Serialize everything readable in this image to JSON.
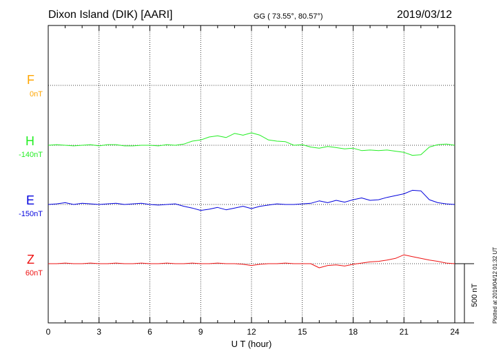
{
  "header": {
    "station": "Dixon Island (DIK)  [AARI]",
    "coords": "GG ( 73.55°,  80.57°)",
    "date": "2019/03/12"
  },
  "footer": {
    "plotted": "Plotted at 2019/04/12 01:32 UT"
  },
  "chart_data": {
    "type": "line",
    "title": "Dixon Island (DIK)  [AARI]",
    "xlabel": "U T (hour)",
    "ylabel": "",
    "xlim": [
      0,
      24
    ],
    "x_ticks": [
      0,
      3,
      6,
      9,
      12,
      15,
      18,
      21,
      24
    ],
    "x_tick_labels": [
      "0",
      "3",
      "6",
      "9",
      "12",
      "15",
      "18",
      "21",
      "24"
    ],
    "grid": true,
    "scale_bar": {
      "label": "500 nT",
      "value_nT": 500
    },
    "series": [
      {
        "name": "F",
        "baseline_label": "0nT",
        "color": "#ffa500",
        "x": [],
        "y": []
      },
      {
        "name": "H",
        "baseline_label": "-140nT",
        "color": "#22ee22",
        "x": [
          0,
          0.5,
          1,
          1.5,
          2,
          2.5,
          3,
          3.5,
          4,
          4.5,
          5,
          5.5,
          6,
          6.5,
          7,
          7.5,
          8,
          8.5,
          9,
          9.5,
          10,
          10.5,
          11,
          11.5,
          12,
          12.5,
          13,
          13.5,
          14,
          14.5,
          15,
          15.5,
          16,
          16.5,
          17,
          17.5,
          18,
          18.5,
          19,
          19.5,
          20,
          20.5,
          21,
          21.5,
          22,
          22.5,
          23,
          23.5,
          24
        ],
        "y": [
          0,
          5,
          0,
          -5,
          0,
          5,
          -5,
          5,
          5,
          -5,
          -5,
          0,
          0,
          -5,
          5,
          0,
          10,
          35,
          45,
          70,
          80,
          65,
          100,
          85,
          105,
          85,
          45,
          35,
          30,
          0,
          5,
          -15,
          -25,
          -10,
          -20,
          -30,
          -25,
          -45,
          -40,
          -45,
          -40,
          -50,
          -60,
          -85,
          -80,
          -15,
          5,
          10,
          0
        ]
      },
      {
        "name": "E",
        "baseline_label": "-150nT",
        "color": "#0000dd",
        "x": [
          0,
          0.5,
          1,
          1.5,
          2,
          2.5,
          3,
          3.5,
          4,
          4.5,
          5,
          5.5,
          6,
          6.5,
          7,
          7.5,
          8,
          8.5,
          9,
          9.5,
          10,
          10.5,
          11,
          11.5,
          12,
          12.5,
          13,
          13.5,
          14,
          14.5,
          15,
          15.5,
          16,
          16.5,
          17,
          17.5,
          18,
          18.5,
          19,
          19.5,
          20,
          20.5,
          21,
          21.5,
          22,
          22.5,
          23,
          23.5,
          24
        ],
        "y": [
          0,
          5,
          15,
          0,
          10,
          5,
          0,
          5,
          10,
          0,
          5,
          10,
          0,
          -5,
          0,
          5,
          -15,
          -30,
          -50,
          -40,
          -25,
          -45,
          -30,
          -15,
          -35,
          -15,
          -5,
          5,
          0,
          0,
          5,
          10,
          30,
          15,
          35,
          20,
          40,
          55,
          35,
          40,
          60,
          75,
          90,
          120,
          115,
          40,
          15,
          5,
          0
        ]
      },
      {
        "name": "Z",
        "baseline_label": "60nT",
        "color": "#ee1111",
        "x": [
          0,
          0.5,
          1,
          1.5,
          2,
          2.5,
          3,
          3.5,
          4,
          4.5,
          5,
          5.5,
          6,
          6.5,
          7,
          7.5,
          8,
          8.5,
          9,
          9.5,
          10,
          10.5,
          11,
          11.5,
          12,
          12.5,
          13,
          13.5,
          14,
          14.5,
          15,
          15.5,
          16,
          16.5,
          17,
          17.5,
          18,
          18.5,
          19,
          19.5,
          20,
          20.5,
          21,
          21.5,
          22,
          22.5,
          23,
          23.5,
          24
        ],
        "y": [
          0,
          0,
          5,
          0,
          0,
          5,
          0,
          0,
          5,
          0,
          0,
          5,
          0,
          0,
          5,
          0,
          0,
          5,
          0,
          0,
          5,
          0,
          0,
          -5,
          -15,
          -5,
          0,
          0,
          5,
          0,
          0,
          0,
          -35,
          -15,
          -10,
          -20,
          -5,
          5,
          15,
          20,
          30,
          45,
          75,
          60,
          45,
          30,
          20,
          5,
          0
        ]
      }
    ]
  }
}
